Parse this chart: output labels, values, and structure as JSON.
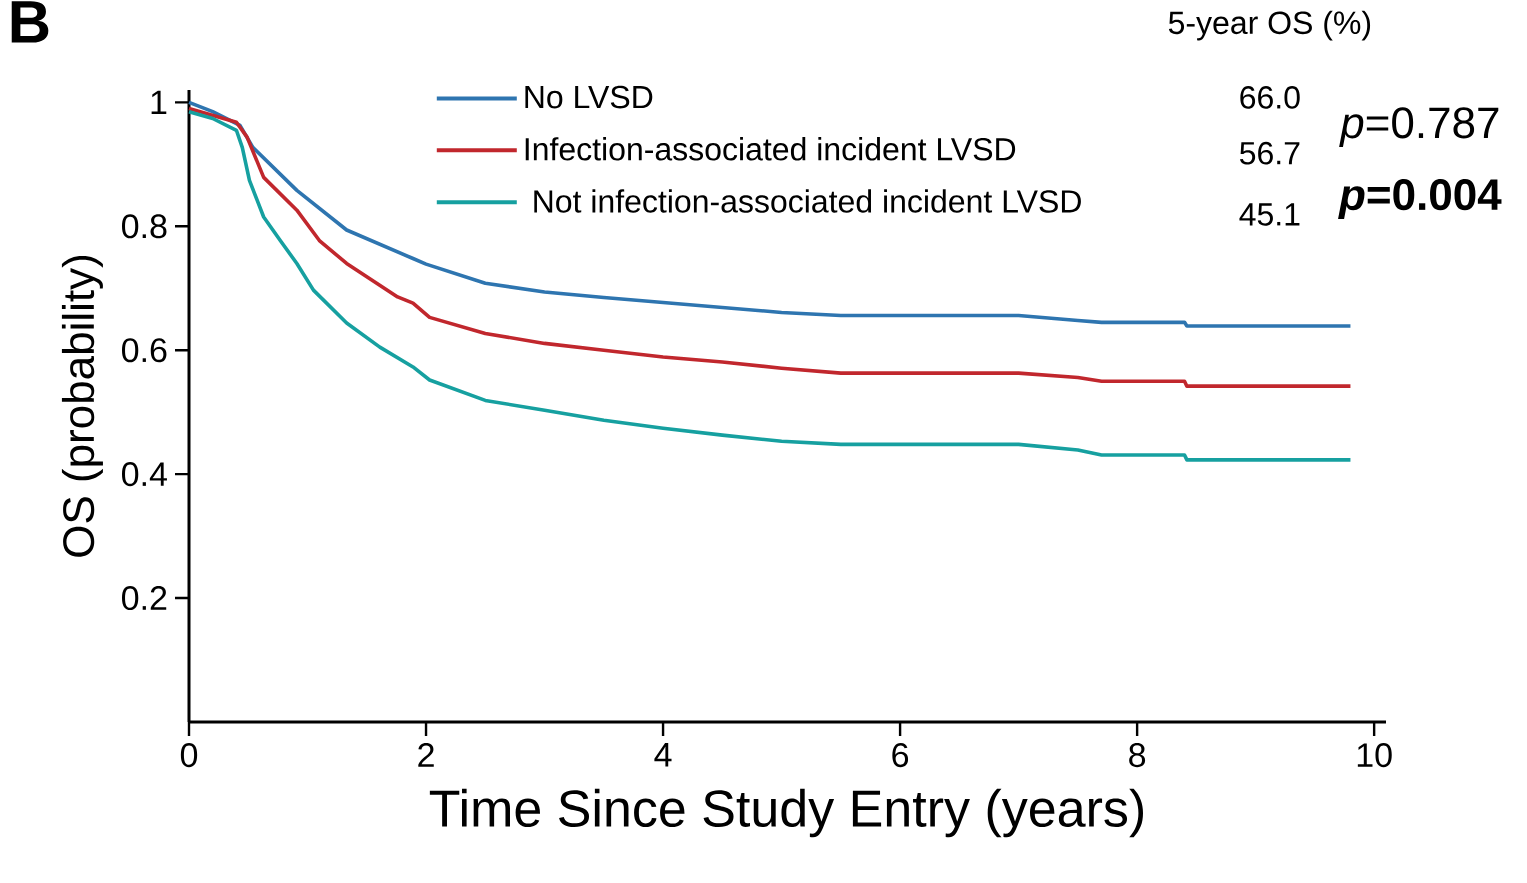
{
  "chart_data": {
    "type": "line",
    "xlabel": "Time Since Study Entry (years)",
    "ylabel": "OS (probability)",
    "xlim": [
      0,
      10.1
    ],
    "ylim": [
      0,
      1.02
    ],
    "xticks": [
      0,
      2,
      4,
      6,
      8,
      10
    ],
    "yticks": [
      0.2,
      0.4,
      0.6,
      0.8,
      1
    ],
    "legend": "top",
    "marker": "none",
    "line_style": "solid",
    "annotations": [
      "B",
      "5-year OS (%)",
      "66.0",
      "56.7",
      "45.1",
      "*p*=0.787",
      "*p*=0.004"
    ],
    "series": [
      {
        "name": "No LVSD",
        "color": "#2e75b0",
        "x": [
          0,
          0.2,
          0.43,
          0.54,
          0.91,
          1.33,
          1.89,
          2,
          2.5,
          3,
          3.5,
          4,
          5,
          5.5,
          7,
          7.5,
          7.7,
          8.4,
          8.42,
          9.8
        ],
        "values": [
          1.0,
          0.985,
          0.963,
          0.927,
          0.858,
          0.794,
          0.748,
          0.739,
          0.708,
          0.694,
          0.685,
          0.677,
          0.661,
          0.656,
          0.656,
          0.648,
          0.645,
          0.645,
          0.639,
          0.639
        ]
      },
      {
        "name": "Infection-associated incident LVSD",
        "color": "#c1272d",
        "x": [
          0,
          0.2,
          0.4,
          0.49,
          0.63,
          0.91,
          1.1,
          1.33,
          1.76,
          1.89,
          2.03,
          2.5,
          3,
          3.5,
          4,
          4.5,
          5,
          5.5,
          7,
          7.5,
          7.7,
          8.4,
          8.42,
          9.8
        ],
        "values": [
          0.99,
          0.979,
          0.968,
          0.944,
          0.879,
          0.826,
          0.777,
          0.74,
          0.686,
          0.676,
          0.653,
          0.627,
          0.611,
          0.6,
          0.589,
          0.581,
          0.571,
          0.563,
          0.563,
          0.556,
          0.55,
          0.55,
          0.542,
          0.542
        ]
      },
      {
        "name": " Not infection-associated incident LVSD",
        "color": "#16a0a0",
        "x": [
          0,
          0.2,
          0.4,
          0.45,
          0.51,
          0.63,
          0.77,
          0.91,
          1.05,
          1.33,
          1.61,
          1.89,
          2.03,
          2.5,
          3,
          3.5,
          4,
          4.5,
          5,
          5.5,
          7,
          7.5,
          7.7,
          8.4,
          8.42,
          9.8
        ],
        "values": [
          0.985,
          0.974,
          0.955,
          0.927,
          0.874,
          0.815,
          0.777,
          0.74,
          0.697,
          0.644,
          0.605,
          0.573,
          0.552,
          0.519,
          0.503,
          0.487,
          0.474,
          0.463,
          0.453,
          0.448,
          0.448,
          0.439,
          0.431,
          0.431,
          0.423,
          0.423
        ]
      }
    ]
  }
}
